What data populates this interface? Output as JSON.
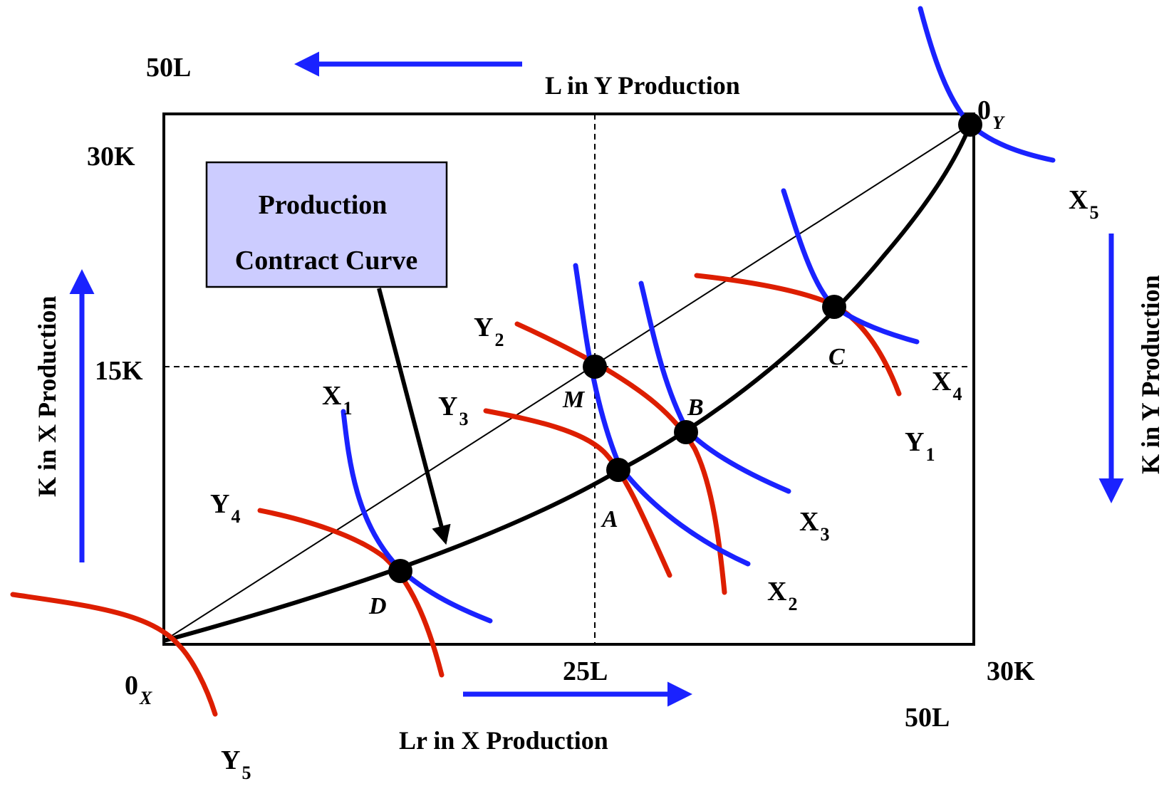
{
  "labels": {
    "left_top_L": "50L",
    "right_bottom_L": "50L",
    "top_axis": "L in Y Production",
    "bottom_axis": "Lr in X Production",
    "left_axis": "K in X Production",
    "right_axis": "K in Y Production",
    "k30_left": "30K",
    "k30_right": "30K",
    "k15": "15K",
    "l25": "25L",
    "origin_x": "0",
    "origin_x_sub": "X",
    "origin_y": "0",
    "origin_y_sub": "Y",
    "box_line1": "Production",
    "box_line2": "Contract Curve"
  },
  "points": {
    "M": "M",
    "A": "A",
    "B": "B",
    "C": "C",
    "D": "D"
  },
  "isoquants_x": [
    {
      "name": "X",
      "sub": "1"
    },
    {
      "name": "X",
      "sub": "2"
    },
    {
      "name": "X",
      "sub": "3"
    },
    {
      "name": "X",
      "sub": "4"
    },
    {
      "name": "X",
      "sub": "5"
    }
  ],
  "isoquants_y": [
    {
      "name": "Y",
      "sub": "1"
    },
    {
      "name": "Y",
      "sub": "2"
    },
    {
      "name": "Y",
      "sub": "3"
    },
    {
      "name": "Y",
      "sub": "4"
    },
    {
      "name": "Y",
      "sub": "5"
    }
  ],
  "colors": {
    "x_isoquant": "#1a22ff",
    "y_isoquant": "#dd1e00",
    "callout_fill": "#ccccff",
    "arrow": "#1a22ff"
  }
}
